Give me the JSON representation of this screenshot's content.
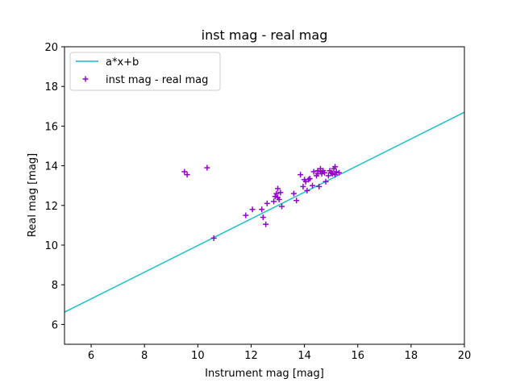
{
  "chart_data": {
    "type": "scatter",
    "title": "inst mag - real mag",
    "xlabel": "Instrument mag [mag]",
    "ylabel": "Real mag [mag]",
    "xlim": [
      5,
      20
    ],
    "ylim": [
      5,
      20
    ],
    "xticks": [
      6,
      8,
      10,
      12,
      14,
      16,
      18,
      20
    ],
    "yticks": [
      6,
      8,
      10,
      12,
      14,
      16,
      18,
      20
    ],
    "grid": false,
    "legend_position": "top-left",
    "series": [
      {
        "name": "a*x+b",
        "kind": "line",
        "color": "#17becf",
        "x": [
          5,
          20
        ],
        "y": [
          6.62,
          16.7
        ]
      },
      {
        "name": "inst mag - real mag",
        "kind": "scatter",
        "marker": "+",
        "color": "#9400d3",
        "x": [
          9.5,
          9.6,
          10.35,
          10.6,
          11.8,
          12.05,
          12.4,
          12.45,
          12.55,
          12.6,
          12.85,
          12.9,
          12.95,
          13.0,
          13.0,
          13.05,
          13.1,
          13.15,
          13.6,
          13.7,
          13.85,
          13.95,
          14.0,
          14.05,
          14.1,
          14.15,
          14.2,
          14.3,
          14.35,
          14.45,
          14.5,
          14.5,
          14.55,
          14.6,
          14.6,
          14.65,
          14.7,
          14.75,
          14.8,
          14.9,
          14.95,
          15.0,
          15.05,
          15.1,
          15.15,
          15.15,
          15.2,
          15.3
        ],
        "y": [
          13.7,
          13.55,
          13.9,
          10.35,
          11.5,
          11.8,
          11.8,
          11.4,
          11.05,
          12.1,
          12.2,
          12.45,
          12.6,
          12.4,
          12.85,
          12.3,
          12.65,
          11.95,
          12.6,
          12.25,
          13.55,
          12.95,
          13.3,
          13.2,
          12.75,
          13.3,
          13.35,
          13.0,
          13.7,
          13.5,
          13.75,
          13.6,
          12.95,
          13.85,
          13.7,
          13.6,
          13.75,
          13.65,
          13.2,
          13.5,
          13.75,
          13.65,
          13.6,
          13.85,
          13.95,
          13.55,
          13.7,
          13.65
        ]
      }
    ]
  }
}
